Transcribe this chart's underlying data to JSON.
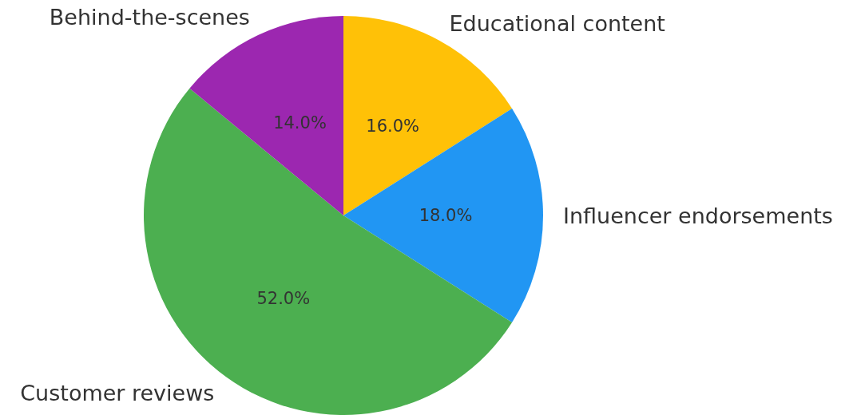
{
  "chart_data": {
    "type": "pie",
    "categories": [
      "Educational content",
      "Influencer endorsements",
      "Customer reviews",
      "Behind-the-scenes"
    ],
    "values": [
      16,
      18,
      52,
      14
    ],
    "value_labels": [
      "16.0%",
      "18.0%",
      "52.0%",
      "14.0%"
    ],
    "colors": [
      "#ffc107",
      "#2196f3",
      "#4caf50",
      "#9c27b0"
    ],
    "legend": false
  }
}
